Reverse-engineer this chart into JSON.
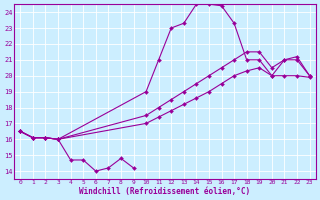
{
  "xlabel": "Windchill (Refroidissement éolien,°C)",
  "background_color": "#cceeff",
  "line_color": "#990099",
  "grid_color": "#ffffff",
  "xlim": [
    -0.5,
    23.5
  ],
  "ylim": [
    13.5,
    24.5
  ],
  "yticks": [
    14,
    15,
    16,
    17,
    18,
    19,
    20,
    21,
    22,
    23,
    24
  ],
  "xticks": [
    0,
    1,
    2,
    3,
    4,
    5,
    6,
    7,
    8,
    9,
    10,
    11,
    12,
    13,
    14,
    15,
    16,
    17,
    18,
    19,
    20,
    21,
    22,
    23
  ],
  "series1_x": [
    0,
    1,
    2,
    3,
    4,
    5,
    6,
    7,
    8,
    9
  ],
  "series1_y": [
    16.5,
    16.1,
    16.1,
    16.0,
    14.7,
    14.7,
    14.0,
    14.2,
    14.8,
    14.2
  ],
  "series2_x": [
    0,
    1,
    2,
    3,
    10,
    11,
    12,
    13,
    14,
    15,
    16,
    17,
    18,
    19,
    20,
    21,
    22,
    23
  ],
  "series2_y": [
    16.5,
    16.1,
    16.1,
    16.0,
    19.0,
    21.0,
    23.0,
    23.3,
    24.5,
    24.5,
    24.4,
    23.3,
    21.0,
    21.0,
    20.0,
    21.0,
    21.0,
    20.0
  ],
  "series3_x": [
    0,
    1,
    2,
    3,
    10,
    11,
    12,
    13,
    14,
    15,
    16,
    17,
    18,
    19,
    20,
    21,
    22,
    23
  ],
  "series3_y": [
    16.5,
    16.1,
    16.1,
    16.0,
    17.0,
    17.4,
    17.8,
    18.2,
    18.6,
    19.0,
    19.5,
    20.0,
    20.3,
    20.5,
    20.0,
    20.0,
    20.0,
    19.9
  ],
  "series4_x": [
    0,
    1,
    2,
    3,
    10,
    11,
    12,
    13,
    14,
    15,
    16,
    17,
    18,
    19,
    20,
    21,
    22,
    23
  ],
  "series4_y": [
    16.5,
    16.1,
    16.1,
    16.0,
    17.5,
    18.0,
    18.5,
    19.0,
    19.5,
    20.0,
    20.5,
    21.0,
    21.5,
    21.5,
    20.5,
    21.0,
    21.2,
    20.0
  ]
}
